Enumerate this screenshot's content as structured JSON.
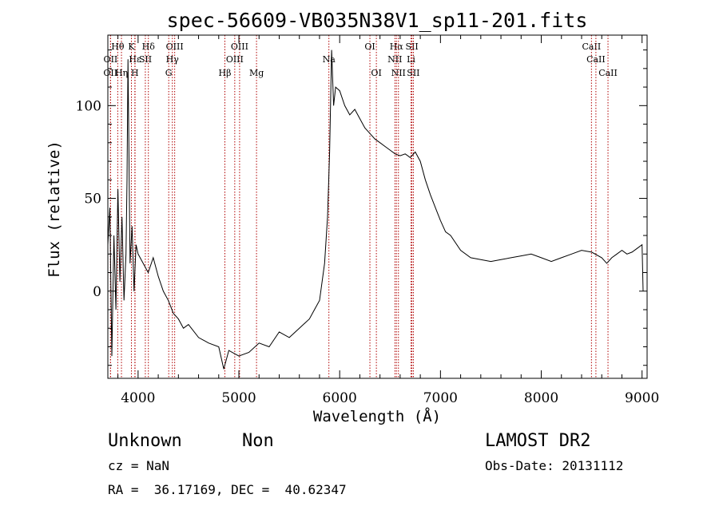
{
  "chart_data": {
    "type": "line",
    "title": "spec-56609-VB035N38V1_sp11-201.fits",
    "xlabel": "Wavelength (Å)",
    "ylabel": "Flux (relative)",
    "xlim": [
      3700,
      9050
    ],
    "ylim": [
      -47,
      138
    ],
    "x_ticks": [
      4000,
      5000,
      6000,
      7000,
      8000,
      9000
    ],
    "y_ticks": [
      0,
      50,
      100
    ],
    "grid": false,
    "line_color": "#000000",
    "marker_color": "#b00000",
    "series": [
      {
        "x": [
          3700,
          3720,
          3740,
          3760,
          3780,
          3800,
          3820,
          3840,
          3860,
          3880,
          3890,
          3900,
          3920,
          3940,
          3960,
          3980,
          4000,
          4050,
          4100,
          4150,
          4200,
          4250,
          4300,
          4350,
          4400,
          4450,
          4500,
          4600,
          4700,
          4800,
          4850,
          4900,
          5000,
          5100,
          5200,
          5300,
          5400,
          5500,
          5600,
          5700,
          5750,
          5800,
          5850,
          5880,
          5900,
          5920,
          5940,
          5960,
          6000,
          6050,
          6100,
          6150,
          6200,
          6250,
          6300,
          6350,
          6400,
          6450,
          6500,
          6550,
          6600,
          6650,
          6700,
          6750,
          6800,
          6850,
          6900,
          6950,
          7000,
          7050,
          7100,
          7200,
          7300,
          7400,
          7500,
          7600,
          7700,
          7800,
          7900,
          8000,
          8100,
          8200,
          8300,
          8400,
          8500,
          8600,
          8650,
          8700,
          8750,
          8800,
          8850,
          8900,
          8950,
          9000,
          9010
        ],
        "y": [
          25,
          45,
          -35,
          30,
          -10,
          55,
          5,
          40,
          -5,
          20,
          60,
          125,
          15,
          35,
          0,
          25,
          20,
          15,
          10,
          18,
          8,
          0,
          -5,
          -12,
          -15,
          -20,
          -18,
          -25,
          -28,
          -30,
          -42,
          -32,
          -35,
          -33,
          -28,
          -30,
          -22,
          -25,
          -20,
          -15,
          -10,
          -5,
          15,
          40,
          75,
          130,
          100,
          110,
          108,
          100,
          95,
          98,
          93,
          88,
          85,
          82,
          80,
          78,
          76,
          74,
          73,
          74,
          72,
          75,
          70,
          60,
          52,
          45,
          38,
          32,
          30,
          22,
          18,
          17,
          16,
          17,
          18,
          19,
          20,
          18,
          16,
          18,
          20,
          22,
          21,
          18,
          15,
          18,
          20,
          22,
          20,
          21,
          23,
          25,
          0
        ]
      }
    ],
    "line_markers": [
      {
        "label": "Hθ",
        "x": 3798,
        "tier": 0
      },
      {
        "label": "K",
        "x": 3934,
        "tier": 0
      },
      {
        "label": "Hδ",
        "x": 4102,
        "tier": 0
      },
      {
        "label": "OIII",
        "x": 4363,
        "tier": 0
      },
      {
        "label": "OIII",
        "x": 5007,
        "tier": 0
      },
      {
        "label": "OI",
        "x": 6300,
        "tier": 0
      },
      {
        "label": "Hα",
        "x": 6563,
        "tier": 0
      },
      {
        "label": "SII",
        "x": 6717,
        "tier": 0
      },
      {
        "label": "CaII",
        "x": 8498,
        "tier": 0
      },
      {
        "label": "OII",
        "x": 3727,
        "tier": 1
      },
      {
        "label": "Hε",
        "x": 3970,
        "tier": 1
      },
      {
        "label": "SII",
        "x": 4072,
        "tier": 1
      },
      {
        "label": "Hγ",
        "x": 4340,
        "tier": 1
      },
      {
        "label": "OIII",
        "x": 4959,
        "tier": 1
      },
      {
        "label": "NII",
        "x": 6548,
        "tier": 1
      },
      {
        "label": "Li",
        "x": 6708,
        "tier": 1
      },
      {
        "label": "CaII",
        "x": 8542,
        "tier": 1
      },
      {
        "label": "OII",
        "x": 3726,
        "tier": 2
      },
      {
        "label": "Hη",
        "x": 3835,
        "tier": 2
      },
      {
        "label": "H",
        "x": 3968,
        "tier": 2
      },
      {
        "label": "G",
        "x": 4304,
        "tier": 2
      },
      {
        "label": "Hβ",
        "x": 4861,
        "tier": 2
      },
      {
        "label": "Mg",
        "x": 5175,
        "tier": 2
      },
      {
        "label": "Na",
        "x": 5893,
        "tier": 1
      },
      {
        "label": "OI",
        "x": 6364,
        "tier": 2
      },
      {
        "label": "NII",
        "x": 6583,
        "tier": 2
      },
      {
        "label": "SII",
        "x": 6731,
        "tier": 2
      },
      {
        "label": "CaII",
        "x": 8662,
        "tier": 2
      }
    ]
  },
  "info": {
    "class_label": "Unknown",
    "subclass_label": "Non",
    "survey": "LAMOST DR2",
    "cz": "cz = NaN",
    "obs_date": "Obs-Date: 20131112",
    "coords": "RA =  36.17169, DEC =  40.62347"
  }
}
